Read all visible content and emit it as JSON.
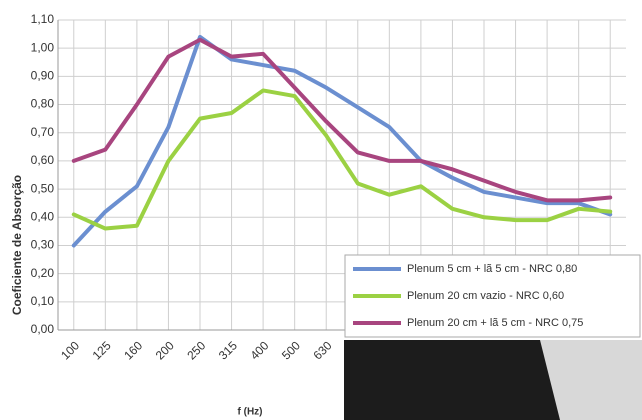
{
  "chart_data": {
    "type": "line",
    "y_label": "Coeficiente de Absorção",
    "x_label": "f (Hz)",
    "categories": [
      "100",
      "125",
      "160",
      "200",
      "250",
      "315",
      "400",
      "500",
      "630",
      null,
      null,
      null,
      null,
      null,
      null,
      null,
      null,
      null
    ],
    "series": [
      {
        "name": "Plenum 5 cm + lã 5 cm - NRC 0,80",
        "color": "#6b8fd0",
        "values": [
          0.3,
          0.42,
          0.51,
          0.72,
          1.04,
          0.96,
          0.94,
          0.92,
          0.86,
          0.79,
          0.72,
          0.6,
          0.54,
          0.49,
          0.47,
          0.45,
          0.45,
          0.41
        ]
      },
      {
        "name": "Plenum 20 cm vazio - NRC 0,60",
        "color": "#9bd143",
        "values": [
          0.41,
          0.36,
          0.37,
          0.6,
          0.75,
          0.77,
          0.85,
          0.83,
          0.69,
          0.52,
          0.48,
          0.51,
          0.43,
          0.4,
          0.39,
          0.39,
          0.43,
          0.42
        ]
      },
      {
        "name": "Plenum 20 cm  + lã 5 cm - NRC 0,75",
        "color": "#a8457f",
        "values": [
          0.6,
          0.64,
          0.8,
          0.97,
          1.03,
          0.97,
          0.98,
          0.86,
          0.74,
          0.63,
          0.6,
          0.6,
          0.57,
          0.53,
          0.49,
          0.46,
          0.46,
          0.47
        ]
      }
    ],
    "ylim": [
      0,
      1.1
    ],
    "yticks": [
      {
        "value": 0,
        "label": "0,00"
      },
      {
        "value": 0.1,
        "label": "0,10"
      },
      {
        "value": 0.2,
        "label": "0,20"
      },
      {
        "value": 0.3,
        "label": "0,30"
      },
      {
        "value": 0.4,
        "label": "0,40"
      },
      {
        "value": 0.5,
        "label": "0,50"
      },
      {
        "value": 0.6,
        "label": "0,60"
      },
      {
        "value": 0.7,
        "label": "0,70"
      },
      {
        "value": 0.8,
        "label": "0,80"
      },
      {
        "value": 0.9,
        "label": "0,90"
      },
      {
        "value": 1.0,
        "label": "1,00"
      },
      {
        "value": 1.1,
        "label": "1,10"
      }
    ],
    "grid": true,
    "legend": "lower right"
  }
}
